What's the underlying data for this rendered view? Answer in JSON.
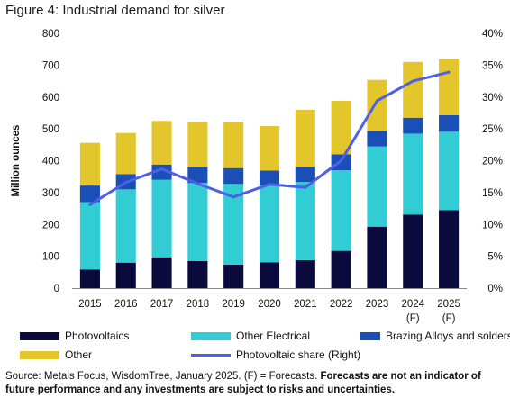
{
  "figure_title": "Figure 4: Industrial demand for silver",
  "chart_data": {
    "type": "bar",
    "stacked": true,
    "categories": [
      "2015",
      "2016",
      "2017",
      "2018",
      "2019",
      "2020",
      "2021",
      "2022",
      "2023",
      "2024",
      "2025"
    ],
    "category_notes": [
      "",
      "",
      "",
      "",
      "",
      "",
      "",
      "",
      "",
      "(F)",
      "(F)"
    ],
    "ylabel": "Million ounces",
    "ylim": [
      0,
      800
    ],
    "yticks": [
      0,
      100,
      200,
      300,
      400,
      500,
      600,
      700,
      800
    ],
    "y2lim": [
      0,
      40
    ],
    "y2ticks": [
      "0%",
      "5%",
      "10%",
      "15%",
      "20%",
      "25%",
      "30%",
      "35%",
      "40%"
    ],
    "grid": false,
    "legend_position": "bottom",
    "series": [
      {
        "name": "Photovoltaics",
        "color": "#0a0a3c",
        "values": [
          58,
          80,
          97,
          85,
          74,
          81,
          88,
          117,
          193,
          231,
          245
        ]
      },
      {
        "name": "Other Electrical",
        "color": "#32ccd4",
        "values": [
          212,
          230,
          243,
          245,
          253,
          242,
          245,
          253,
          252,
          254,
          246
        ]
      },
      {
        "name": "Brazing Alloys and solders",
        "color": "#1a4fb8",
        "values": [
          52,
          48,
          48,
          50,
          50,
          46,
          48,
          50,
          49,
          50,
          52
        ]
      },
      {
        "name": "Other",
        "color": "#e3c62c",
        "values": [
          134,
          129,
          137,
          142,
          146,
          140,
          179,
          168,
          160,
          175,
          177
        ]
      },
      {
        "name": "Photovoltaic share (Right)",
        "type": "line",
        "axis": "right",
        "color": "#4f5fe6",
        "values": [
          13.1,
          16.6,
          18.7,
          16.4,
          14.3,
          16.3,
          15.8,
          20.0,
          29.4,
          32.5,
          33.9
        ]
      }
    ]
  },
  "legend_items": [
    {
      "label": "Photovoltaics",
      "color": "#0a0a3c",
      "kind": "box"
    },
    {
      "label": "Other Electrical",
      "color": "#32ccd4",
      "kind": "box"
    },
    {
      "label": "Brazing Alloys and solders",
      "color": "#1a4fb8",
      "kind": "box"
    },
    {
      "label": "Other",
      "color": "#e3c62c",
      "kind": "box"
    },
    {
      "label": "Photovoltaic share (Right)",
      "color": "#4f5fe6",
      "kind": "line"
    }
  ],
  "footer": {
    "source": "Source: Metals Focus, WisdomTree, January 2025. (F) = Forecasts. ",
    "disclaimer": "Forecasts are not an indicator of future performance and any investments are subject to risks and uncertainties."
  }
}
